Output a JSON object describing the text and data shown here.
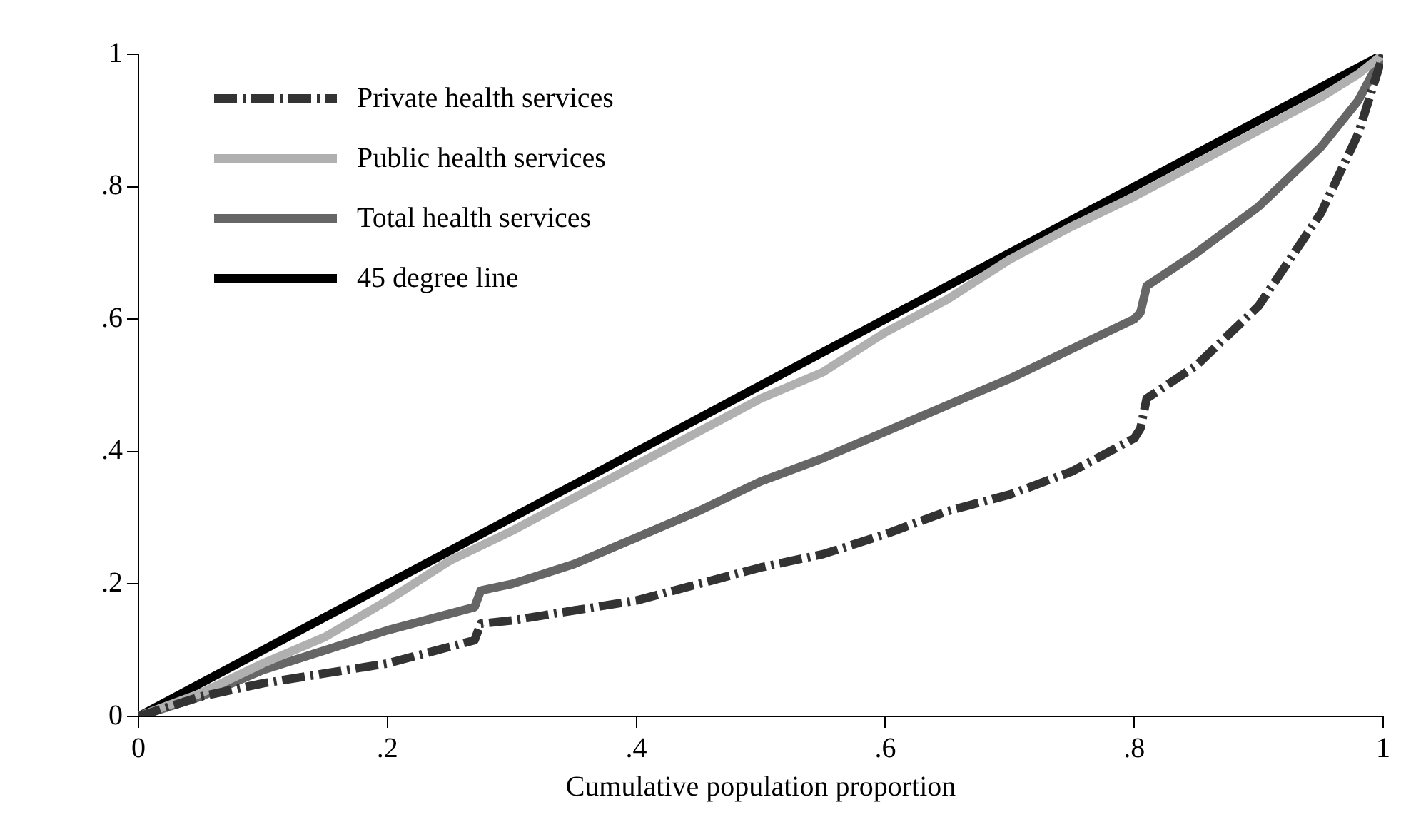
{
  "chart_data": {
    "type": "line",
    "xlabel": "Cumulative population proportion",
    "xlim": [
      0,
      1
    ],
    "ylim": [
      0,
      1
    ],
    "xticks": [
      0,
      {
        "value": 0.2,
        "label": ".2"
      },
      {
        "value": 0.4,
        "label": ".4"
      },
      {
        "value": 0.6,
        "label": ".6"
      },
      {
        "value": 0.8,
        "label": ".8"
      },
      1
    ],
    "yticks": [
      0,
      {
        "value": 0.2,
        "label": ".2"
      },
      {
        "value": 0.4,
        "label": ".4"
      },
      {
        "value": 0.6,
        "label": ".6"
      },
      {
        "value": 0.8,
        "label": ".8"
      },
      1
    ],
    "grid": false,
    "legend": "top left",
    "marker": "none",
    "series": [
      {
        "name": "Private health services",
        "color": "#333333",
        "line_style": "dashed",
        "x": [
          0,
          0.05,
          0.1,
          0.15,
          0.2,
          0.25,
          0.27,
          0.275,
          0.3,
          0.35,
          0.4,
          0.45,
          0.5,
          0.55,
          0.6,
          0.65,
          0.7,
          0.75,
          0.8,
          0.805,
          0.81,
          0.85,
          0.9,
          0.95,
          0.98,
          1
        ],
        "values": [
          0,
          0.03,
          0.05,
          0.065,
          0.08,
          0.105,
          0.115,
          0.14,
          0.145,
          0.16,
          0.175,
          0.2,
          0.225,
          0.245,
          0.275,
          0.31,
          0.335,
          0.37,
          0.42,
          0.435,
          0.48,
          0.53,
          0.62,
          0.76,
          0.88,
          1
        ]
      },
      {
        "name": "Public health services",
        "color": "#b0b0b0",
        "line_style": "solid",
        "x": [
          0,
          0.05,
          0.1,
          0.15,
          0.2,
          0.25,
          0.3,
          0.35,
          0.4,
          0.45,
          0.5,
          0.55,
          0.6,
          0.65,
          0.7,
          0.75,
          0.8,
          0.85,
          0.9,
          0.95,
          0.98,
          1
        ],
        "values": [
          0,
          0.035,
          0.08,
          0.12,
          0.175,
          0.235,
          0.28,
          0.33,
          0.38,
          0.43,
          0.48,
          0.52,
          0.58,
          0.63,
          0.69,
          0.74,
          0.785,
          0.835,
          0.885,
          0.935,
          0.97,
          1
        ]
      },
      {
        "name": "Total health services",
        "color": "#666666",
        "line_style": "solid",
        "x": [
          0,
          0.05,
          0.1,
          0.15,
          0.2,
          0.25,
          0.27,
          0.275,
          0.3,
          0.35,
          0.4,
          0.45,
          0.5,
          0.55,
          0.6,
          0.65,
          0.7,
          0.75,
          0.8,
          0.805,
          0.81,
          0.85,
          0.9,
          0.95,
          0.98,
          1
        ],
        "values": [
          0,
          0.03,
          0.07,
          0.1,
          0.13,
          0.155,
          0.165,
          0.19,
          0.2,
          0.23,
          0.27,
          0.31,
          0.355,
          0.39,
          0.43,
          0.47,
          0.51,
          0.555,
          0.6,
          0.61,
          0.65,
          0.7,
          0.77,
          0.86,
          0.93,
          1
        ]
      },
      {
        "name": "45 degree line",
        "color": "#000000",
        "line_style": "solid",
        "x": [
          0,
          1
        ],
        "values": [
          0,
          1
        ]
      }
    ]
  }
}
